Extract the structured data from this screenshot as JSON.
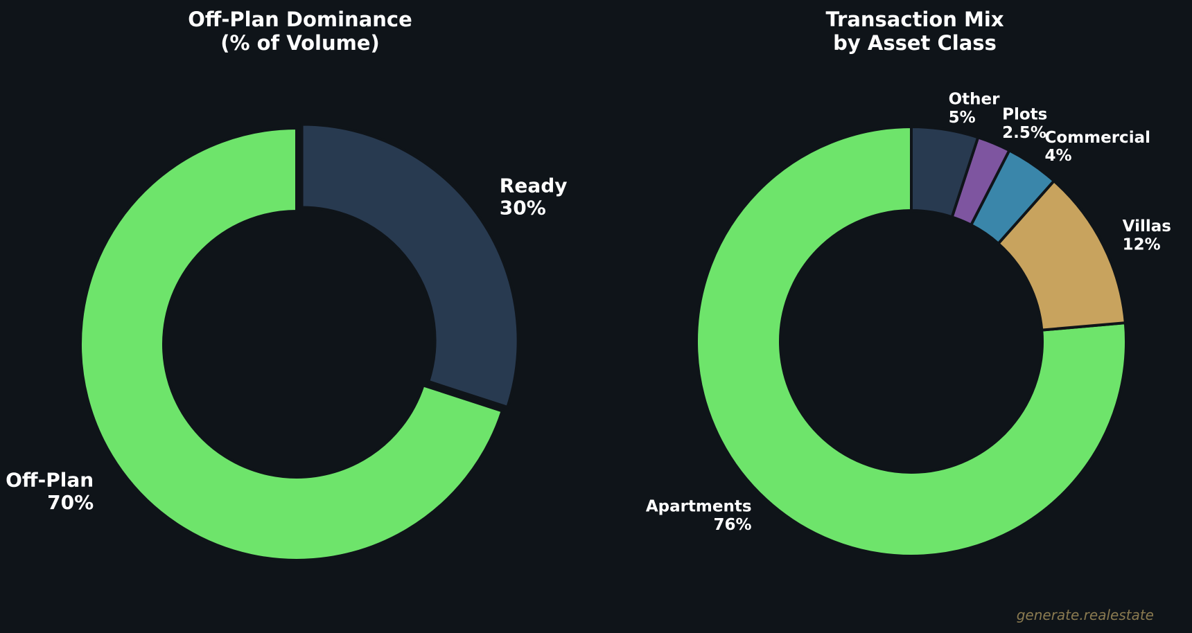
{
  "chart_data": [
    {
      "type": "pie",
      "title": "Off-Plan Dominance",
      "subtitle": "(% of Volume)",
      "categories": [
        "Off-Plan",
        "Ready"
      ],
      "values": [
        70,
        30
      ],
      "value_labels": [
        "70%",
        "30%"
      ],
      "colors": [
        "#6ee46b",
        "#283a50"
      ]
    },
    {
      "type": "pie",
      "title": "Transaction Mix",
      "subtitle": "by Asset Class",
      "categories": [
        "Apartments",
        "Villas",
        "Commercial",
        "Plots",
        "Other"
      ],
      "values": [
        76,
        12,
        4,
        2.5,
        5
      ],
      "value_labels": [
        "76%",
        "12%",
        "4%",
        "2.5%",
        "5%"
      ],
      "colors": [
        "#6ee46b",
        "#c8a35e",
        "#3a86aa",
        "#7e55a0",
        "#283a50"
      ]
    }
  ],
  "watermark": "generate.realestate"
}
